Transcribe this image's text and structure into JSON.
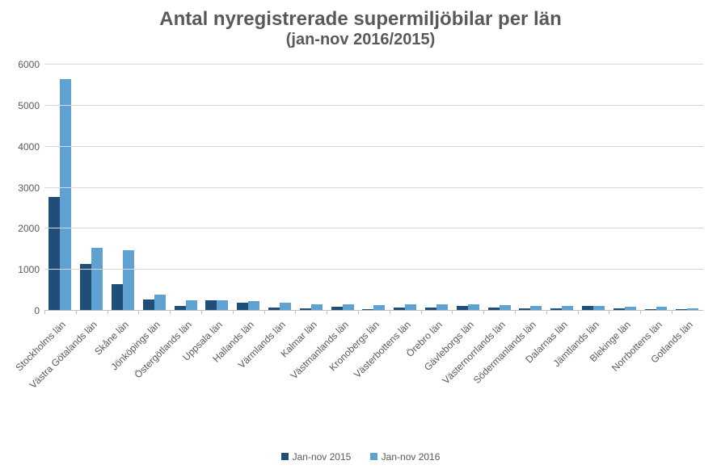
{
  "chart": {
    "type": "bar",
    "title_line1": "Antal nyregistrerade supermiljöbilar per län",
    "title_line2": "(jan-nov 2016/2015)",
    "title_color": "#595959",
    "title_fontsize_line1": 24,
    "title_fontsize_line2": 20,
    "background_color": "#ffffff",
    "grid_color": "#d9d9d9",
    "axis_color": "#bfbfbf",
    "label_color": "#595959",
    "label_fontsize": 12,
    "ylim": [
      0,
      6000
    ],
    "ytick_step": 1000,
    "yticks": [
      0,
      1000,
      2000,
      3000,
      4000,
      5000,
      6000
    ],
    "bar_width": 0.36,
    "series": [
      {
        "name": "Jan-nov 2015",
        "color": "#1f4e79"
      },
      {
        "name": "Jan-nov 2016",
        "color": "#5fa2d1"
      }
    ],
    "categories": [
      "Stockholms län",
      "Västra Götalands län",
      "Skåne län",
      "Jönköpings län",
      "Östergötlands län",
      "Uppsala län",
      "Hallands län",
      "Värmlands län",
      "Kalmar län",
      "Västmanlands län",
      "Kronobergs län",
      "Västerbottens län",
      "Örebro län",
      "Gävleborgs län",
      "Västernorrlands län",
      "Södermanlands län",
      "Dalarnas län",
      "Jämtlands län",
      "Blekinge län",
      "Norrbottens län",
      "Gotlands län"
    ],
    "values_2015": [
      2770,
      1140,
      650,
      270,
      120,
      260,
      190,
      80,
      50,
      90,
      40,
      70,
      80,
      110,
      70,
      60,
      50,
      110,
      50,
      40,
      35
    ],
    "values_2016": [
      5650,
      1540,
      1470,
      400,
      260,
      250,
      230,
      190,
      160,
      160,
      140,
      160,
      150,
      150,
      130,
      120,
      120,
      110,
      100,
      90,
      55
    ]
  }
}
